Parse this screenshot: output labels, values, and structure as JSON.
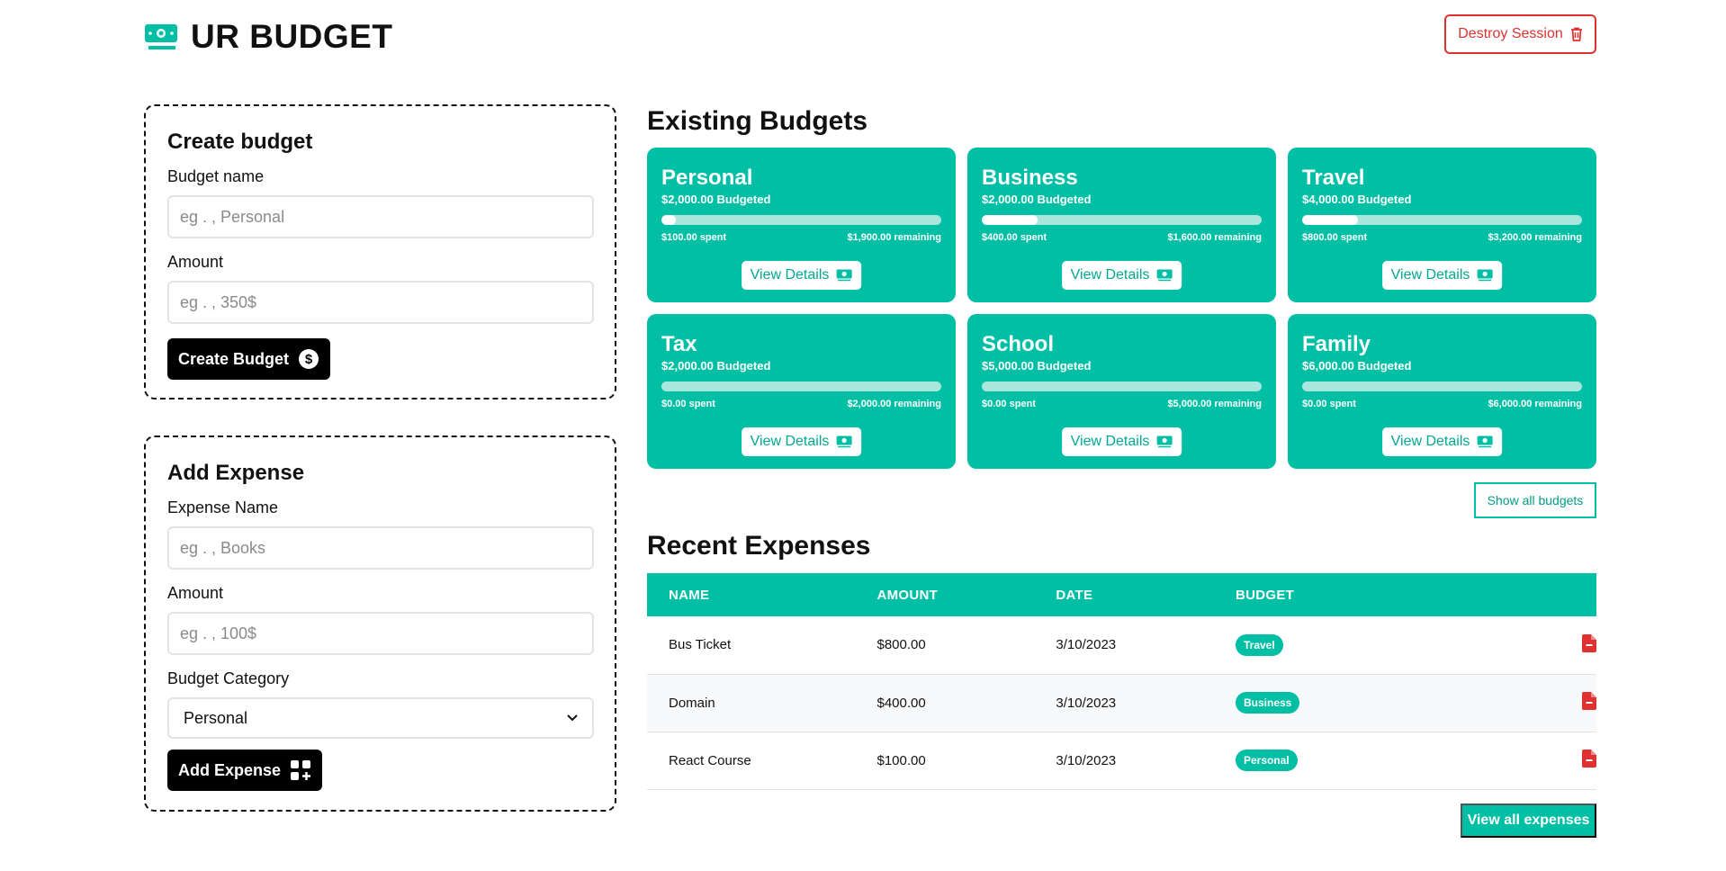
{
  "app": {
    "title": "UR BUDGET",
    "destroy_label": "Destroy Session",
    "accent_color": "#00bfa5",
    "danger_color": "#e03131"
  },
  "create_budget": {
    "title": "Create budget",
    "name_label": "Budget name",
    "name_placeholder": "eg . , Personal",
    "amount_label": "Amount",
    "amount_placeholder": "eg . , 350$",
    "button_label": "Create Budget"
  },
  "add_expense": {
    "title": "Add Expense",
    "name_label": "Expense Name",
    "name_placeholder": "eg . , Books",
    "amount_label": "Amount",
    "amount_placeholder": "eg . , 100$",
    "category_label": "Budget Category",
    "category_selected": "Personal",
    "button_label": "Add Expense"
  },
  "budgets": {
    "title": "Existing Budgets",
    "view_label": "View Details",
    "show_all_label": "Show all budgets",
    "items": [
      {
        "name": "Personal",
        "budgeted": "$2,000.00 Budgeted",
        "spent": "$100.00 spent",
        "remaining": "$1,900.00 remaining",
        "progress": 0.05
      },
      {
        "name": "Business",
        "budgeted": "$2,000.00 Budgeted",
        "spent": "$400.00 spent",
        "remaining": "$1,600.00 remaining",
        "progress": 0.2
      },
      {
        "name": "Travel",
        "budgeted": "$4,000.00 Budgeted",
        "spent": "$800.00 spent",
        "remaining": "$3,200.00 remaining",
        "progress": 0.2
      },
      {
        "name": "Tax",
        "budgeted": "$2,000.00 Budgeted",
        "spent": "$0.00 spent",
        "remaining": "$2,000.00 remaining",
        "progress": 0
      },
      {
        "name": "School",
        "budgeted": "$5,000.00 Budgeted",
        "spent": "$0.00 spent",
        "remaining": "$5,000.00 remaining",
        "progress": 0
      },
      {
        "name": "Family",
        "budgeted": "$6,000.00 Budgeted",
        "spent": "$0.00 spent",
        "remaining": "$6,000.00 remaining",
        "progress": 0
      }
    ]
  },
  "expenses": {
    "title": "Recent Expenses",
    "columns": [
      "NAME",
      "AMOUNT",
      "DATE",
      "BUDGET",
      ""
    ],
    "rows": [
      {
        "name": "Bus Ticket",
        "amount": "$800.00",
        "date": "3/10/2023",
        "budget": "Travel"
      },
      {
        "name": "Domain",
        "amount": "$400.00",
        "date": "3/10/2023",
        "budget": "Business"
      },
      {
        "name": "React Course",
        "amount": "$100.00",
        "date": "3/10/2023",
        "budget": "Personal"
      }
    ],
    "view_all_label": "View all expenses"
  }
}
